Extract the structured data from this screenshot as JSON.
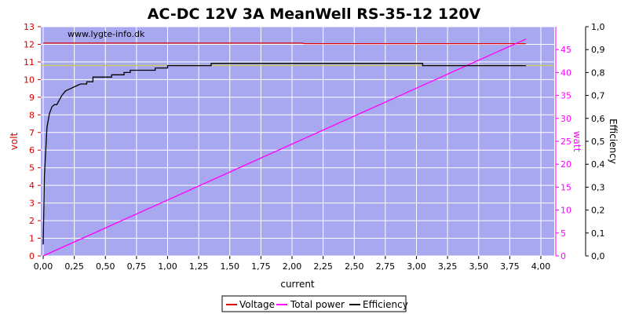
{
  "chart_data": {
    "type": "line",
    "title": "AC-DC 12V 3A MeanWell RS-35-12 120V",
    "watermark": "www.lygte-info.dk",
    "xlabel": "current",
    "ylabel_left": "volt",
    "ylabel_right1": "watt",
    "ylabel_right2": "Efficiency",
    "xlim": [
      0,
      4.1
    ],
    "ylim_left": [
      0,
      13
    ],
    "ylim_right1": [
      0,
      50
    ],
    "ylim_right2": [
      0,
      1.0
    ],
    "x_ticks": [
      "0,00",
      "0,25",
      "0,50",
      "0,75",
      "1,00",
      "1,25",
      "1,50",
      "1,75",
      "2,00",
      "2,25",
      "2,50",
      "2,75",
      "3,00",
      "3,25",
      "3,50",
      "3,75",
      "4,00"
    ],
    "y_left_ticks": [
      "0",
      "1",
      "2",
      "3",
      "4",
      "5",
      "6",
      "7",
      "8",
      "9",
      "10",
      "11",
      "12",
      "13"
    ],
    "y_right1_ticks": [
      "0",
      "5",
      "10",
      "15",
      "20",
      "25",
      "30",
      "35",
      "40",
      "45"
    ],
    "y_right2_ticks": [
      "0,0",
      "0,1",
      "0,2",
      "0,3",
      "0,4",
      "0,5",
      "0,6",
      "0,7",
      "0,8",
      "0,9",
      "1,0"
    ],
    "grid": true,
    "legend_position": "bottom-center",
    "reference_line": {
      "axis": "left",
      "value": 10.8,
      "color": "#c8c864"
    },
    "colors": {
      "plot_bg": "#a8a8f0",
      "grid": "#ffffff",
      "voltage": "#e00000",
      "power": "#ff00ff",
      "efficiency": "#000000",
      "left_axis": "#d00000",
      "right1_axis": "#ff00ff",
      "right2_axis": "#000000"
    },
    "series": [
      {
        "name": "Voltage",
        "axis": "left",
        "x": [
          0.0,
          0.5,
          1.0,
          1.5,
          2.0,
          2.08,
          2.1,
          2.5,
          3.0,
          3.5,
          3.88
        ],
        "y": [
          12.07,
          12.07,
          12.07,
          12.07,
          12.07,
          12.07,
          12.04,
          12.04,
          12.04,
          12.04,
          12.04
        ]
      },
      {
        "name": "Total power",
        "axis": "right1",
        "x": [
          0.0,
          0.5,
          1.0,
          1.5,
          2.0,
          2.5,
          3.0,
          3.5,
          3.88
        ],
        "y": [
          0.0,
          6.1,
          12.2,
          18.3,
          24.4,
          30.5,
          36.6,
          42.7,
          47.3
        ]
      },
      {
        "name": "Efficiency",
        "axis": "right2",
        "x": [
          0.0,
          0.01,
          0.03,
          0.05,
          0.07,
          0.09,
          0.11,
          0.13,
          0.15,
          0.18,
          0.22,
          0.26,
          0.3,
          0.35,
          0.4,
          0.5,
          0.55,
          0.6,
          0.65,
          0.7,
          0.75,
          0.8,
          0.85,
          0.9,
          0.95,
          1.0,
          1.05,
          1.1,
          1.2,
          1.3,
          1.35,
          1.4,
          1.5,
          1.6,
          1.7,
          1.8,
          2.0,
          2.2,
          2.5,
          2.8,
          3.0,
          3.05,
          3.3,
          3.5,
          3.6,
          3.7,
          3.88
        ],
        "y": [
          0.05,
          0.35,
          0.56,
          0.62,
          0.65,
          0.66,
          0.66,
          0.68,
          0.7,
          0.72,
          0.73,
          0.74,
          0.75,
          0.76,
          0.78,
          0.78,
          0.79,
          0.79,
          0.8,
          0.81,
          0.81,
          0.81,
          0.81,
          0.82,
          0.82,
          0.83,
          0.83,
          0.83,
          0.83,
          0.83,
          0.84,
          0.84,
          0.84,
          0.84,
          0.84,
          0.84,
          0.84,
          0.84,
          0.84,
          0.84,
          0.84,
          0.83,
          0.83,
          0.83,
          0.83,
          0.83,
          0.83
        ]
      }
    ]
  }
}
